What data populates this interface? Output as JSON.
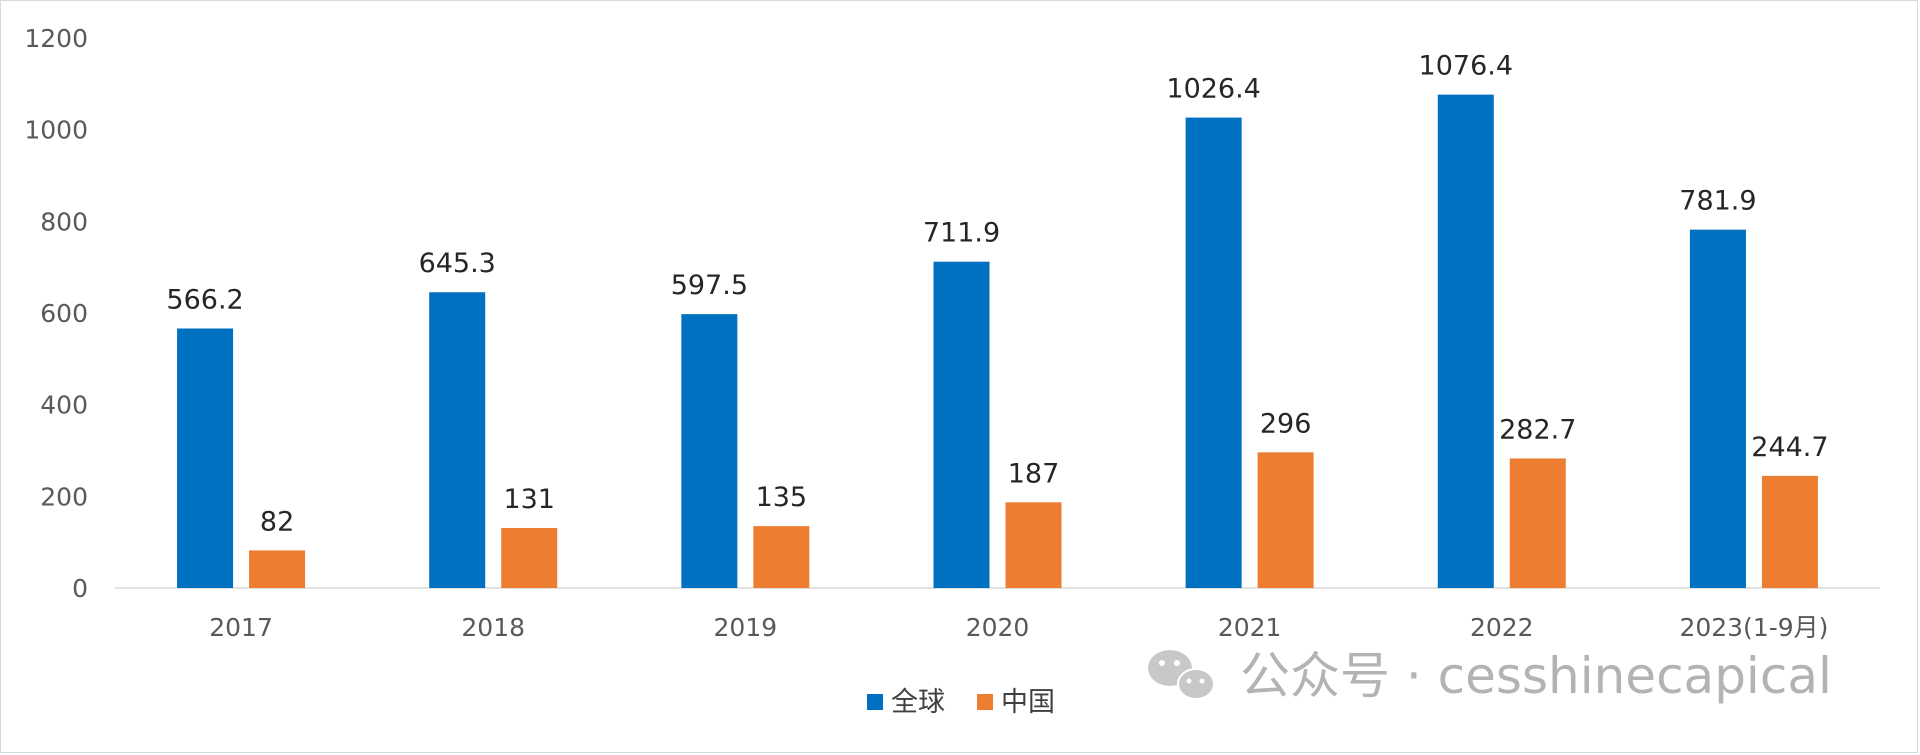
{
  "chart_data": {
    "type": "bar",
    "categories": [
      "2017",
      "2018",
      "2019",
      "2020",
      "2021",
      "2022",
      "2023(1-9月)"
    ],
    "series": [
      {
        "name": "全球",
        "values": [
          566.2,
          645.3,
          597.5,
          711.9,
          1026.4,
          1076.4,
          781.9
        ],
        "color": "#0070C0"
      },
      {
        "name": "中国",
        "values": [
          82,
          131,
          135,
          187,
          296,
          282.7,
          244.7
        ],
        "color": "#ED7D31"
      }
    ],
    "value_labels": [
      [
        "566.2",
        "645.3",
        "597.5",
        "711.9",
        "1026.4",
        "1076.4",
        "781.9"
      ],
      [
        "82",
        "131",
        "135",
        "187",
        "296",
        "282.7",
        "244.7"
      ]
    ],
    "ylim": [
      0,
      1200
    ],
    "yticks": [
      0,
      200,
      400,
      600,
      800,
      1000,
      1200
    ],
    "ytick_labels": [
      "0",
      "200",
      "400",
      "600",
      "800",
      "1000",
      "1200"
    ],
    "grid": false,
    "legend_position": "bottom"
  },
  "watermark": {
    "text": "公众号 · cesshinecapical",
    "icon": "wechat-icon"
  }
}
